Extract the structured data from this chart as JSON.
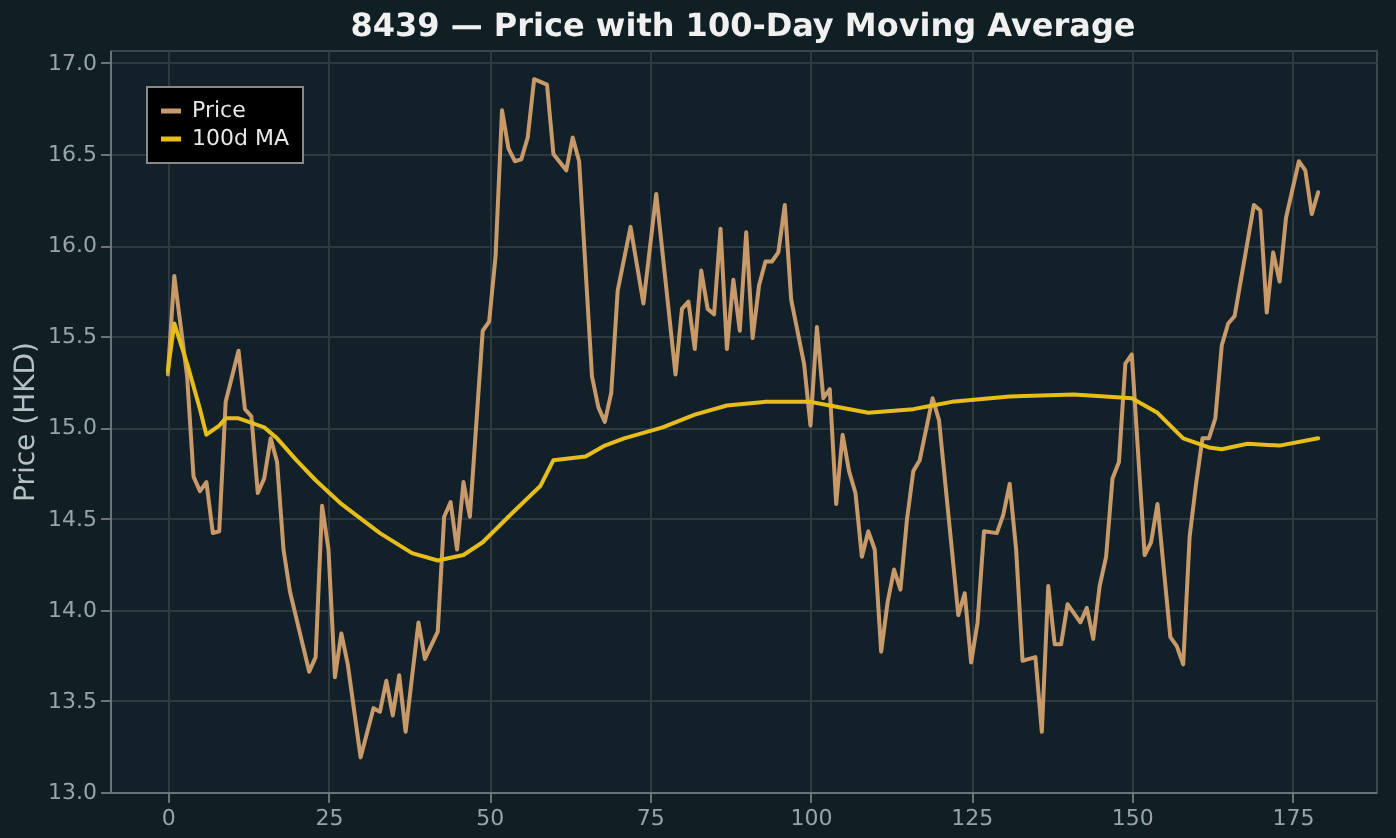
{
  "chart_data": {
    "type": "line",
    "title": "8439 — Price with 100-Day Moving Average",
    "ylabel": "Price (HKD)",
    "xlim": [
      -9,
      188
    ],
    "xticks": [
      0,
      25,
      50,
      75,
      100,
      125,
      150,
      175
    ],
    "ylim": [
      13.0,
      17.07
    ],
    "yticks": [
      {
        "value": 13,
        "label": "13.0"
      },
      {
        "value": 13.5,
        "label": "13.5"
      },
      {
        "value": 14,
        "label": "14.0"
      },
      {
        "value": 14.5,
        "label": "14.5"
      },
      {
        "value": 15,
        "label": "15.0"
      },
      {
        "value": 15.5,
        "label": "15.5"
      },
      {
        "value": 16,
        "label": "16.0"
      },
      {
        "value": 16.5,
        "label": "16.5"
      },
      {
        "value": 17,
        "label": "17.0"
      }
    ],
    "grid": true,
    "legend": "top left",
    "line_style": "solid",
    "marker": "none",
    "series": [
      {
        "name": "Price",
        "color": "#c89a6a",
        "x": [
          0,
          1,
          3,
          4,
          5,
          6,
          7,
          8,
          9,
          11,
          12,
          13,
          14,
          15,
          16,
          17,
          18,
          19,
          22,
          23,
          24,
          25,
          26,
          27,
          28,
          30,
          32,
          33,
          34,
          35,
          36,
          37,
          39,
          40,
          42,
          43,
          44,
          45,
          46,
          47,
          49,
          50,
          51,
          52,
          53,
          54,
          55,
          56,
          57,
          59,
          60,
          62,
          63,
          64,
          66,
          67,
          68,
          69,
          70,
          72,
          74,
          76,
          79,
          80,
          81,
          82,
          83,
          84,
          85,
          86,
          87,
          88,
          89,
          90,
          91,
          92,
          93,
          94,
          95,
          96,
          97,
          99,
          100,
          101,
          102,
          103,
          104,
          105,
          106,
          107,
          108,
          109,
          110,
          111,
          112,
          113,
          114,
          115,
          116,
          117,
          119,
          120,
          122,
          123,
          124,
          125,
          126,
          127,
          129,
          130,
          131,
          132,
          133,
          135,
          136,
          137,
          138,
          139,
          140,
          142,
          143,
          144,
          145,
          146,
          147,
          148,
          149,
          150,
          152,
          153,
          154,
          156,
          157,
          158,
          159,
          160,
          161,
          162,
          163,
          164,
          165,
          166,
          169,
          170,
          171,
          172,
          173,
          174,
          176,
          177,
          178,
          179
        ],
        "values": [
          15.29,
          15.83,
          15.28,
          14.73,
          14.65,
          14.7,
          14.42,
          14.43,
          15.14,
          15.42,
          15.1,
          15.06,
          14.64,
          14.72,
          14.94,
          14.81,
          14.33,
          14.1,
          13.66,
          13.74,
          14.57,
          14.33,
          13.63,
          13.87,
          13.7,
          13.19,
          13.46,
          13.44,
          13.61,
          13.42,
          13.64,
          13.33,
          13.93,
          13.73,
          13.88,
          14.51,
          14.59,
          14.33,
          14.7,
          14.51,
          15.53,
          15.58,
          15.94,
          16.74,
          16.53,
          16.46,
          16.47,
          16.59,
          16.91,
          16.88,
          16.5,
          16.41,
          16.59,
          16.46,
          15.28,
          15.11,
          15.03,
          15.19,
          15.75,
          16.1,
          15.68,
          16.28,
          15.29,
          15.65,
          15.69,
          15.43,
          15.86,
          15.65,
          15.62,
          16.09,
          15.43,
          15.81,
          15.53,
          16.07,
          15.49,
          15.78,
          15.91,
          15.91,
          15.96,
          16.22,
          15.7,
          15.35,
          15.01,
          15.55,
          15.16,
          15.21,
          14.58,
          14.96,
          14.76,
          14.64,
          14.29,
          14.43,
          14.33,
          13.77,
          14.04,
          14.22,
          14.11,
          14.49,
          14.76,
          14.82,
          15.16,
          15.04,
          14.33,
          13.97,
          14.09,
          13.71,
          13.93,
          14.43,
          14.42,
          14.52,
          14.69,
          14.33,
          13.72,
          13.74,
          13.33,
          14.13,
          13.81,
          13.81,
          14.03,
          13.93,
          14.01,
          13.84,
          14.13,
          14.29,
          14.72,
          14.81,
          15.35,
          15.4,
          14.3,
          14.37,
          14.58,
          13.85,
          13.8,
          13.7,
          14.4,
          14.69,
          14.94,
          14.94,
          15.05,
          15.45,
          15.57,
          15.61,
          16.22,
          16.19,
          15.63,
          15.96,
          15.8,
          16.15,
          16.46,
          16.41,
          16.17,
          16.29
        ]
      },
      {
        "name": "100d MA",
        "color": "#e6bd1a",
        "x": [
          0,
          1,
          3,
          5,
          6,
          8,
          9,
          11,
          15,
          17,
          20,
          23,
          27,
          33,
          38,
          42,
          46,
          49,
          53,
          58,
          60,
          65,
          68,
          71,
          77,
          82,
          87,
          93,
          100,
          103,
          109,
          116,
          119,
          122,
          131,
          141,
          150,
          154,
          158,
          162,
          164,
          168,
          173,
          179
        ],
        "values": [
          15.31,
          15.57,
          15.35,
          15.1,
          14.96,
          15.01,
          15.05,
          15.05,
          15.0,
          14.94,
          14.82,
          14.71,
          14.58,
          14.42,
          14.31,
          14.27,
          14.3,
          14.37,
          14.51,
          14.68,
          14.82,
          14.84,
          14.9,
          14.94,
          15.0,
          15.07,
          15.12,
          15.14,
          15.14,
          15.12,
          15.08,
          15.1,
          15.12,
          15.14,
          15.17,
          15.18,
          15.16,
          15.08,
          14.94,
          14.89,
          14.88,
          14.91,
          14.9,
          14.94
        ]
      }
    ]
  }
}
